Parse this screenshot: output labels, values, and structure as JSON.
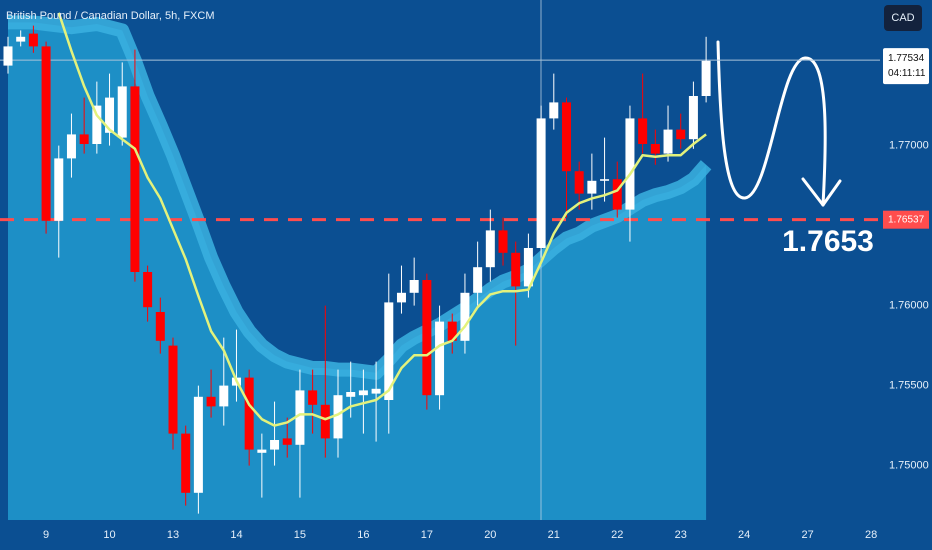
{
  "chart_data": {
    "type": "candlestick",
    "title": "British Pound / Canadian Dollar, 5h, FXCM",
    "currency_button": "CAD",
    "annotation": "1.7653",
    "countdown": "04:11:11",
    "last_price": {
      "value": 1.77534,
      "label": "1.77534"
    },
    "level": {
      "value": 1.76537,
      "label": "1.76537",
      "color": "#ff4d4d"
    },
    "up_color": "#ffffff",
    "down_color": "#ff0000",
    "x": [
      0,
      1,
      2,
      3,
      4,
      5,
      6,
      7,
      8,
      9,
      10,
      11,
      12,
      13,
      14,
      15,
      16,
      17,
      18,
      19,
      20,
      21,
      22,
      23,
      24,
      25,
      26,
      27,
      28,
      29,
      30,
      31,
      32,
      33,
      34,
      35,
      36,
      37,
      38,
      39,
      40,
      41,
      42,
      43,
      44,
      45,
      46,
      47,
      48,
      49,
      50,
      51,
      52,
      53,
      54,
      55
    ],
    "open": [
      1.775,
      1.7765,
      1.777,
      1.7762,
      1.7653,
      1.7692,
      1.7707,
      1.7701,
      1.7708,
      1.7705,
      1.7737,
      1.7621,
      1.7596,
      1.7575,
      1.752,
      1.7483,
      1.7543,
      1.7537,
      1.755,
      1.7555,
      1.7508,
      1.751,
      1.7517,
      1.7513,
      1.7547,
      1.7538,
      1.7517,
      1.7543,
      1.7544,
      1.7545,
      1.7541,
      1.7602,
      1.7608,
      1.7616,
      1.7544,
      1.759,
      1.7578,
      1.7608,
      1.7624,
      1.7647,
      1.7633,
      1.7612,
      1.7636,
      1.7717,
      1.7727,
      1.7684,
      1.767,
      1.7678,
      1.7679,
      1.766,
      1.7717,
      1.7701,
      1.7695,
      1.771,
      1.7704,
      1.7731
    ],
    "high": [
      1.7768,
      1.7772,
      1.7775,
      1.7765,
      1.77,
      1.772,
      1.773,
      1.774,
      1.7745,
      1.7752,
      1.776,
      1.7625,
      1.7605,
      1.758,
      1.7525,
      1.755,
      1.756,
      1.758,
      1.7585,
      1.756,
      1.752,
      1.754,
      1.753,
      1.756,
      1.756,
      1.76,
      1.756,
      1.7565,
      1.756,
      1.7565,
      1.762,
      1.7625,
      1.763,
      1.762,
      1.76,
      1.7595,
      1.762,
      1.764,
      1.766,
      1.7655,
      1.764,
      1.7645,
      1.7725,
      1.7745,
      1.773,
      1.769,
      1.7695,
      1.7705,
      1.769,
      1.7725,
      1.7745,
      1.771,
      1.7725,
      1.772,
      1.774,
      1.7768
    ],
    "low": [
      1.7745,
      1.7762,
      1.7758,
      1.7645,
      1.763,
      1.768,
      1.7695,
      1.7695,
      1.77,
      1.77,
      1.7615,
      1.759,
      1.757,
      1.751,
      1.7475,
      1.747,
      1.753,
      1.7525,
      1.754,
      1.75,
      1.748,
      1.75,
      1.7505,
      1.748,
      1.752,
      1.7505,
      1.7505,
      1.753,
      1.752,
      1.7515,
      1.752,
      1.7595,
      1.76,
      1.7535,
      1.7535,
      1.757,
      1.757,
      1.76,
      1.7615,
      1.7625,
      1.7575,
      1.7605,
      1.763,
      1.771,
      1.7655,
      1.766,
      1.766,
      1.7665,
      1.7655,
      1.764,
      1.7695,
      1.7688,
      1.769,
      1.7698,
      1.7698,
      1.7727
    ],
    "close": [
      1.7762,
      1.7768,
      1.7762,
      1.7653,
      1.7692,
      1.7707,
      1.7701,
      1.7725,
      1.773,
      1.7737,
      1.7621,
      1.7599,
      1.7578,
      1.752,
      1.7483,
      1.7543,
      1.7537,
      1.755,
      1.7555,
      1.751,
      1.751,
      1.7516,
      1.7513,
      1.7547,
      1.7538,
      1.7517,
      1.7544,
      1.7546,
      1.7547,
      1.7548,
      1.7602,
      1.7608,
      1.7616,
      1.7544,
      1.759,
      1.7578,
      1.7608,
      1.7624,
      1.7647,
      1.7633,
      1.7612,
      1.7636,
      1.7717,
      1.7727,
      1.7684,
      1.767,
      1.7678,
      1.7679,
      1.766,
      1.7717,
      1.7701,
      1.7695,
      1.771,
      1.7704,
      1.7731,
      1.7753
    ],
    "band": {
      "color": "#1d8fc6",
      "edge_color": "#3bb2e0",
      "values": [
        1.7777,
        1.7777,
        1.7777,
        1.7776,
        1.7775,
        1.7774,
        1.7775,
        1.7776,
        1.7774,
        1.7772,
        1.7753,
        1.7731,
        1.7713,
        1.7694,
        1.7673,
        1.7652,
        1.763,
        1.7612,
        1.7596,
        1.7584,
        1.7575,
        1.7569,
        1.7565,
        1.7563,
        1.7561,
        1.7561,
        1.756,
        1.756,
        1.7559,
        1.7558,
        1.7566,
        1.7575,
        1.758,
        1.7584,
        1.7588,
        1.7593,
        1.7598,
        1.7604,
        1.761,
        1.7615,
        1.7618,
        1.7622,
        1.7629,
        1.7636,
        1.7642,
        1.7645,
        1.765,
        1.7653,
        1.7656,
        1.7661,
        1.7666,
        1.7669,
        1.7671,
        1.7674,
        1.7679,
        1.7688
      ]
    },
    "ma": {
      "color": "#e3f27c",
      "values": [
        null,
        null,
        null,
        null,
        1.7783,
        1.7759,
        1.7737,
        1.7719,
        1.771,
        1.7704,
        1.7698,
        1.768,
        1.7667,
        1.7648,
        1.7629,
        1.7606,
        1.7584,
        1.7572,
        1.7553,
        1.7538,
        1.7529,
        1.7525,
        1.7527,
        1.7532,
        1.7532,
        1.7529,
        1.7532,
        1.7537,
        1.7539,
        1.7541,
        1.7547,
        1.7561,
        1.7569,
        1.7569,
        1.7575,
        1.7578,
        1.7587,
        1.7599,
        1.7607,
        1.7609,
        1.7609,
        1.761,
        1.7627,
        1.7645,
        1.7658,
        1.7664,
        1.7667,
        1.7669,
        1.7672,
        1.7682,
        1.7694,
        1.7693,
        1.7694,
        1.7694,
        1.7701,
        1.7707
      ]
    },
    "xlim": [
      -0.63,
      68.7
    ],
    "ylim": [
      1.7466,
      1.7791
    ],
    "xticks": [
      {
        "value": 3,
        "label": "9"
      },
      {
        "value": 8,
        "label": "10"
      },
      {
        "value": 13,
        "label": "13"
      },
      {
        "value": 18,
        "label": "14"
      },
      {
        "value": 23,
        "label": "15"
      },
      {
        "value": 28,
        "label": "16"
      },
      {
        "value": 33,
        "label": "17"
      },
      {
        "value": 38,
        "label": "20"
      },
      {
        "value": 43,
        "label": "21"
      },
      {
        "value": 48,
        "label": "22"
      },
      {
        "value": 53,
        "label": "23"
      },
      {
        "value": 58,
        "label": "24"
      },
      {
        "value": 63,
        "label": "27"
      },
      {
        "value": 68,
        "label": "28"
      }
    ],
    "yticks": [
      {
        "value": 1.75,
        "label": "1.75000"
      },
      {
        "value": 1.755,
        "label": "1.75500"
      },
      {
        "value": 1.76,
        "label": "1.76000"
      },
      {
        "value": 1.77,
        "label": "1.77000"
      }
    ],
    "grid": false
  }
}
